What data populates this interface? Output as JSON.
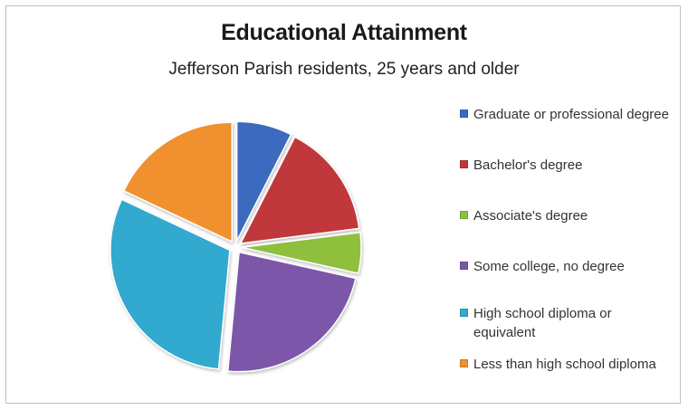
{
  "chart_data": {
    "type": "pie",
    "title": "Educational Attainment",
    "subtitle": "Jefferson Parish residents, 25 years and older",
    "legend_position": "right",
    "slices": [
      {
        "label": "Graduate or professional degree",
        "value": 7.5,
        "color": "#3a6bbf"
      },
      {
        "label": "Bachelor's degree",
        "value": 15.5,
        "color": "#c0393b"
      },
      {
        "label": "Associate's degree",
        "value": 5.5,
        "color": "#8fbf3c"
      },
      {
        "label": "Some college, no degree",
        "value": 23.0,
        "color": "#7b56a8"
      },
      {
        "label": "High school diploma or equivalent",
        "value": 30.5,
        "color": "#33a9cf"
      },
      {
        "label": "Less than high school diploma",
        "value": 18.0,
        "color": "#f0902f"
      }
    ]
  }
}
